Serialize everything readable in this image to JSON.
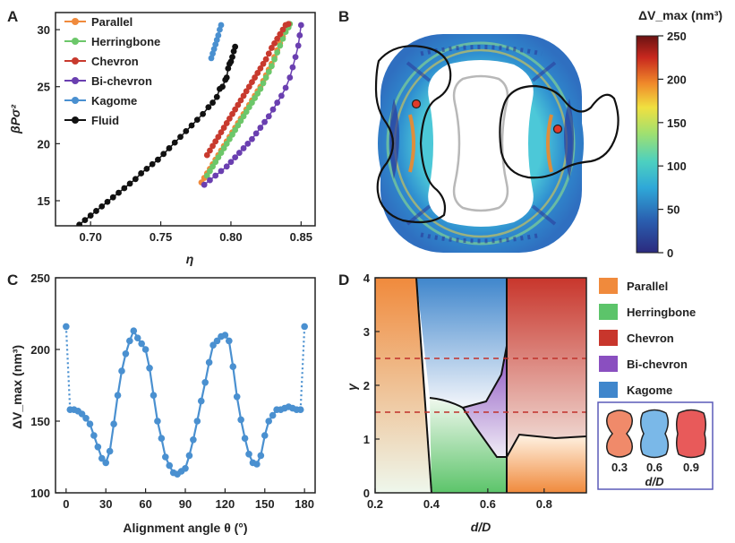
{
  "panels": {
    "A": "A",
    "B": "B",
    "C": "C",
    "D": "D"
  },
  "chart_data": [
    {
      "panel": "A",
      "type": "scatter",
      "xlabel": "η",
      "ylabel": "βPσ²",
      "xlim": [
        0.675,
        0.86
      ],
      "ylim": [
        12.8,
        31.5
      ],
      "xticks": [
        0.7,
        0.75,
        0.8,
        0.85
      ],
      "yticks": [
        15,
        20,
        25,
        30
      ],
      "legend_position": "top-left",
      "series": [
        {
          "name": "Parallel",
          "color": "#f08a3c",
          "x": [
            0.779,
            0.781,
            0.783,
            0.785,
            0.787,
            0.789,
            0.791,
            0.793,
            0.795,
            0.797,
            0.799,
            0.801,
            0.803,
            0.805,
            0.807,
            0.809,
            0.811,
            0.813,
            0.815,
            0.817,
            0.819,
            0.821,
            0.823,
            0.825,
            0.827,
            0.829,
            0.831,
            0.833,
            0.835,
            0.837,
            0.838,
            0.839
          ],
          "y": [
            16.6,
            17.0,
            17.4,
            17.8,
            18.2,
            18.6,
            19.0,
            19.4,
            19.8,
            20.2,
            20.6,
            21.0,
            21.4,
            21.8,
            22.2,
            22.6,
            23.0,
            23.4,
            23.8,
            24.2,
            24.6,
            25.0,
            25.5,
            26.0,
            26.5,
            27.0,
            27.6,
            28.2,
            28.8,
            29.4,
            29.9,
            30.4
          ]
        },
        {
          "name": "Herringbone",
          "color": "#6cc76a",
          "x": [
            0.783,
            0.785,
            0.787,
            0.789,
            0.791,
            0.793,
            0.795,
            0.797,
            0.799,
            0.801,
            0.803,
            0.805,
            0.807,
            0.809,
            0.811,
            0.813,
            0.815,
            0.817,
            0.819,
            0.821,
            0.823,
            0.825,
            0.827,
            0.829,
            0.831,
            0.833,
            0.835,
            0.837,
            0.839,
            0.841,
            0.842
          ],
          "y": [
            17.2,
            17.6,
            18.0,
            18.4,
            18.8,
            19.2,
            19.6,
            20.0,
            20.4,
            20.8,
            21.2,
            21.6,
            22.0,
            22.4,
            22.8,
            23.2,
            23.6,
            24.0,
            24.4,
            24.8,
            25.3,
            25.8,
            26.3,
            26.8,
            27.4,
            28.0,
            28.6,
            29.2,
            29.8,
            30.2,
            30.5
          ]
        },
        {
          "name": "Chevron",
          "color": "#c83a2e",
          "x": [
            0.783,
            0.785,
            0.787,
            0.789,
            0.791,
            0.793,
            0.795,
            0.797,
            0.799,
            0.801,
            0.803,
            0.805,
            0.807,
            0.809,
            0.811,
            0.813,
            0.815,
            0.817,
            0.819,
            0.821,
            0.823,
            0.825,
            0.827,
            0.829,
            0.831,
            0.833,
            0.835,
            0.837,
            0.839,
            0.841
          ],
          "y": [
            19.0,
            19.4,
            19.8,
            20.2,
            20.6,
            21.0,
            21.4,
            21.8,
            22.2,
            22.6,
            23.0,
            23.4,
            23.8,
            24.2,
            24.6,
            25.0,
            25.4,
            25.8,
            26.2,
            26.6,
            27.0,
            27.4,
            27.9,
            28.4,
            28.8,
            29.2,
            29.6,
            30.0,
            30.4,
            30.5
          ]
        },
        {
          "name": "Bi-chevron",
          "color": "#6a3fb0",
          "x": [
            0.781,
            0.785,
            0.789,
            0.793,
            0.797,
            0.8,
            0.803,
            0.806,
            0.809,
            0.812,
            0.815,
            0.818,
            0.821,
            0.824,
            0.827,
            0.83,
            0.833,
            0.836,
            0.839,
            0.842,
            0.844,
            0.846,
            0.848,
            0.849,
            0.85
          ],
          "y": [
            16.4,
            16.8,
            17.2,
            17.6,
            18.0,
            18.4,
            18.8,
            19.2,
            19.6,
            20.0,
            20.4,
            20.9,
            21.4,
            21.9,
            22.4,
            23.0,
            23.6,
            24.2,
            24.9,
            25.8,
            26.7,
            27.6,
            28.6,
            29.5,
            30.4
          ]
        },
        {
          "name": "Kagome",
          "color": "#4a90d0",
          "x": [
            0.786,
            0.787,
            0.788,
            0.789,
            0.79,
            0.791,
            0.792,
            0.793
          ],
          "y": [
            27.5,
            27.9,
            28.3,
            28.7,
            29.1,
            29.5,
            30.0,
            30.4
          ]
        },
        {
          "name": "Fluid",
          "color": "#111111",
          "x": [
            0.692,
            0.696,
            0.7,
            0.704,
            0.708,
            0.712,
            0.716,
            0.72,
            0.724,
            0.728,
            0.732,
            0.736,
            0.74,
            0.744,
            0.748,
            0.752,
            0.756,
            0.76,
            0.764,
            0.768,
            0.772,
            0.776,
            0.78,
            0.784,
            0.787,
            0.79,
            0.792,
            0.794,
            0.796,
            0.797,
            0.798,
            0.799,
            0.8,
            0.801,
            0.802,
            0.803
          ],
          "y": [
            12.9,
            13.3,
            13.7,
            14.1,
            14.5,
            14.9,
            15.3,
            15.7,
            16.1,
            16.5,
            16.9,
            17.4,
            17.8,
            18.2,
            18.6,
            19.1,
            19.6,
            20.1,
            20.6,
            21.1,
            21.6,
            22.1,
            22.6,
            23.2,
            23.6,
            24.1,
            24.8,
            25.0,
            25.6,
            25.8,
            26.6,
            27.0,
            27.2,
            27.6,
            28.1,
            28.5
          ]
        }
      ]
    },
    {
      "panel": "B",
      "type": "heatmap",
      "colorbar_label": "ΔV_max (nm³)",
      "colorbar_ticks": [
        0,
        50,
        100,
        150,
        200,
        250
      ],
      "clim": [
        0,
        250
      ],
      "colormap": [
        "#2b2a7e",
        "#2a5fb0",
        "#2fa8d8",
        "#4cd0c0",
        "#a0e070",
        "#f0e040",
        "#f08a2a",
        "#c8281e",
        "#6a1212"
      ]
    },
    {
      "panel": "C",
      "type": "line",
      "xlabel": "Alignment angle θ (°)",
      "ylabel": "ΔV_max (nm³)",
      "xlim": [
        -8,
        188
      ],
      "ylim": [
        100,
        250
      ],
      "xticks": [
        0,
        30,
        60,
        90,
        120,
        150,
        180
      ],
      "yticks": [
        100,
        150,
        200,
        250
      ],
      "color": "#4a90d0",
      "x": [
        0,
        3,
        6,
        9,
        12,
        15,
        18,
        21,
        24,
        27,
        30,
        33,
        36,
        39,
        42,
        45,
        48,
        51,
        54,
        57,
        60,
        63,
        66,
        69,
        72,
        75,
        78,
        81,
        84,
        87,
        90,
        93,
        96,
        99,
        102,
        105,
        108,
        111,
        114,
        117,
        120,
        123,
        126,
        129,
        132,
        135,
        138,
        141,
        144,
        147,
        150,
        153,
        156,
        159,
        162,
        165,
        168,
        171,
        174,
        177,
        180
      ],
      "y": [
        216,
        158,
        158,
        157,
        155,
        152,
        148,
        140,
        132,
        124,
        121,
        129,
        148,
        168,
        185,
        197,
        206,
        213,
        208,
        204,
        200,
        187,
        168,
        150,
        138,
        125,
        119,
        114,
        113,
        115,
        117,
        126,
        137,
        150,
        164,
        177,
        191,
        203,
        206,
        209,
        210,
        206,
        188,
        167,
        151,
        138,
        127,
        121,
        120,
        126,
        140,
        150,
        154,
        158,
        158,
        159,
        160,
        159,
        158,
        158,
        216
      ],
      "dotted_segments": [
        [
          0,
          3
        ],
        [
          177,
          180
        ]
      ]
    },
    {
      "panel": "D",
      "type": "area",
      "title": "",
      "xlabel": "d/D",
      "ylabel": "γ",
      "xlim": [
        0.2,
        0.95
      ],
      "ylim": [
        0,
        4
      ],
      "xticks": [
        0.2,
        0.4,
        0.6,
        0.8
      ],
      "yticks": [
        0,
        1,
        2,
        3,
        4
      ],
      "dashed_lines_y": [
        2.5,
        1.5
      ],
      "regions": [
        {
          "name": "Parallel",
          "color": "#f08a3c"
        },
        {
          "name": "Herringbone",
          "color": "#5cc46a"
        },
        {
          "name": "Chevron",
          "color": "#c8362c"
        },
        {
          "name": "Bi-chevron",
          "color": "#8a4fc0"
        },
        {
          "name": "Kagome",
          "color": "#3f86cc"
        }
      ],
      "inset_label": "d/D",
      "inset_values": [
        "0.3",
        "0.6",
        "0.9"
      ]
    }
  ]
}
